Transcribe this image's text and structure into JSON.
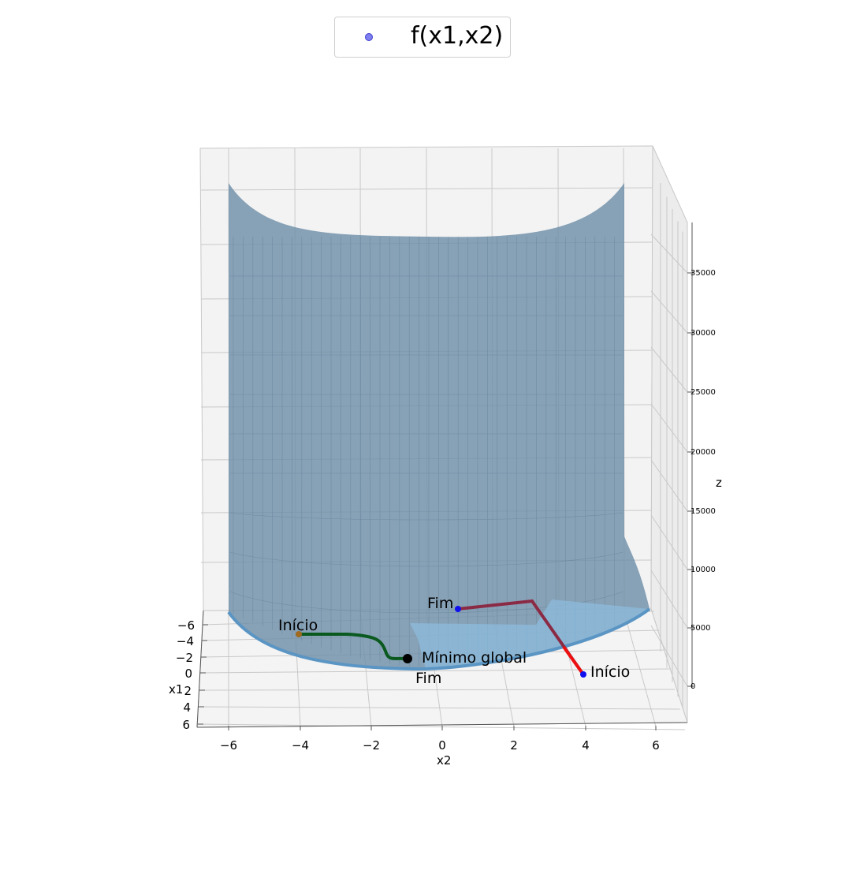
{
  "legend": {
    "label": "f(x1,x2)",
    "marker_color": "#7f7ff0"
  },
  "chart_data": {
    "type": "surface3d",
    "title": "",
    "xlabel": "x2",
    "ylabel": "x1",
    "zlabel": "z",
    "x_ticks": [
      "−6",
      "−4",
      "−2",
      "0",
      "2",
      "4",
      "6"
    ],
    "y_ticks": [
      "−6",
      "−4",
      "−2",
      "0",
      "2",
      "4",
      "6"
    ],
    "z_ticks": [
      "0",
      "5000",
      "10000",
      "15000",
      "20000",
      "25000",
      "30000",
      "35000"
    ],
    "xlim": [
      -6.5,
      6.5
    ],
    "ylim": [
      -6.5,
      6.5
    ],
    "zlim": [
      0,
      38000
    ],
    "surface": {
      "color": "#6f8fa8",
      "edge_color": "#5a95c4"
    },
    "paths": [
      {
        "color": "#0a5a1f",
        "start": {
          "x1": -1,
          "x2": -4,
          "z": 0
        },
        "end": {
          "x1": -1,
          "x2": -1,
          "z": 0
        }
      },
      {
        "color": "#d01020",
        "start": {
          "x1": 1,
          "x2": 4,
          "z": 0
        },
        "end": {
          "x1": -6,
          "x2": 0.5,
          "z": 300
        }
      }
    ],
    "annotations": [
      {
        "text": "Início",
        "x2": -4,
        "x1": -1
      },
      {
        "text": "Fim",
        "x2": -1,
        "x1": -1
      },
      {
        "text": "Mínimo global",
        "x2": -1,
        "x1": -1
      },
      {
        "text": "Início",
        "x2": 4,
        "x1": 1
      },
      {
        "text": "Fim",
        "x2": 0.5,
        "x1": -6
      }
    ],
    "points": [
      {
        "name": "start-green",
        "color": "#a06a20"
      },
      {
        "name": "global-min",
        "color": "#000000"
      },
      {
        "name": "start-red",
        "color": "#1010ee"
      },
      {
        "name": "end-red",
        "color": "#1010ee"
      }
    ],
    "grid": true,
    "legend_position": "top-center"
  }
}
